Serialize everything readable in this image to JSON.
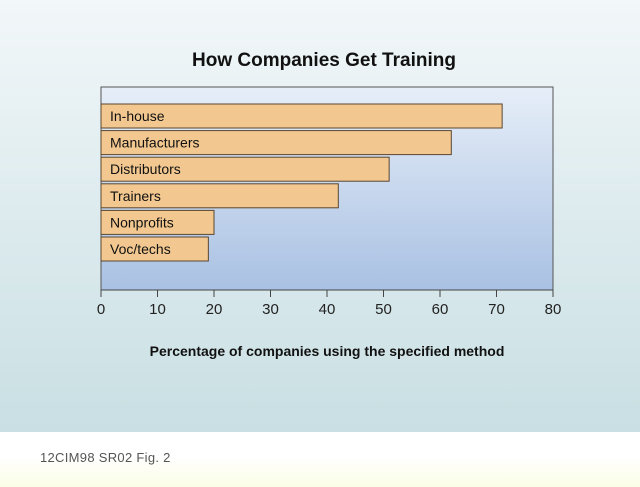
{
  "chart_data": {
    "type": "bar",
    "orientation": "horizontal",
    "title": "How Companies Get Training",
    "xlabel": "Percentage of companies using the specified method",
    "ylabel": "",
    "categories": [
      "In-house",
      "Manufacturers",
      "Distributors",
      "Trainers",
      "Nonprofits",
      "Voc/techs"
    ],
    "values": [
      71,
      62,
      51,
      42,
      20,
      19
    ],
    "xlim": [
      0,
      80
    ],
    "xticks": [
      0,
      10,
      20,
      30,
      40,
      50,
      60,
      70,
      80
    ],
    "grid": false,
    "legend": "none"
  },
  "footer": {
    "caption": "12CIM98 SR02 Fig. 2"
  },
  "colors": {
    "bar_fill": "#f2c890",
    "bar_stroke": "#5a4630",
    "plot_bg_top": "#e6eef8",
    "plot_bg_bottom": "#a9c1e3"
  }
}
